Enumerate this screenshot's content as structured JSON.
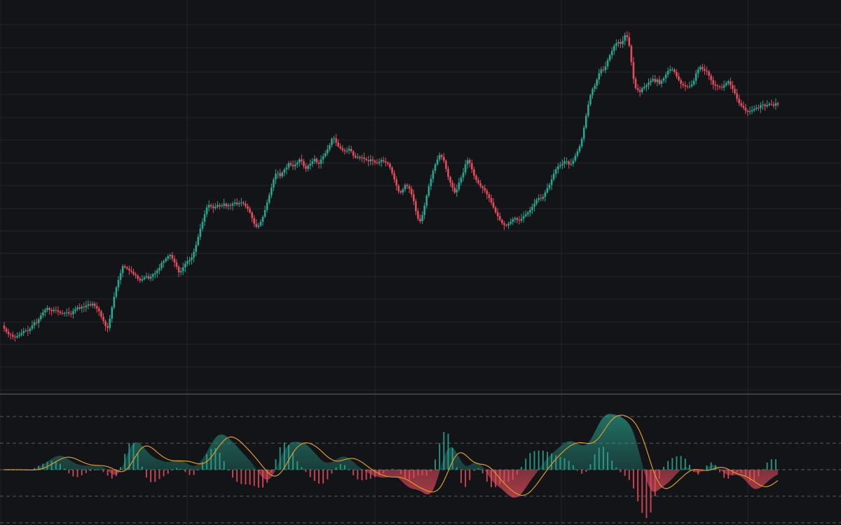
{
  "colors": {
    "background": "#131418",
    "grid": "#23252b",
    "pane_divider": "#3a3d45",
    "candle_up": "#2aa58f",
    "candle_down": "#e34c5c",
    "signal_line": "#e0992a",
    "level_line": "#6b6e76"
  },
  "chart_data": [
    {
      "type": "candlestick",
      "pane": "price",
      "grid": true,
      "x": [
        0,
        1,
        2,
        3,
        4,
        5,
        6,
        7,
        8,
        9,
        10,
        11,
        12,
        13,
        14,
        15,
        16,
        17,
        18,
        19,
        20,
        21,
        22,
        23,
        24,
        25,
        26,
        27,
        28,
        29,
        30,
        31,
        32,
        33,
        34,
        35,
        36,
        37,
        38,
        39,
        40,
        41,
        42,
        43,
        44,
        45,
        46,
        47,
        48,
        49,
        50,
        51,
        52,
        53,
        54,
        55,
        56,
        57,
        58,
        59,
        60,
        61,
        62,
        63,
        64,
        65,
        66,
        67,
        68,
        69,
        70,
        71,
        72,
        73,
        74,
        75,
        76,
        77,
        78,
        79,
        80,
        81,
        82,
        83,
        84,
        85,
        86,
        87,
        88,
        89,
        90,
        91,
        92,
        93,
        94,
        95,
        96,
        97,
        98,
        99,
        100,
        101,
        102,
        103,
        104,
        105,
        106,
        107,
        108,
        109,
        110,
        111,
        112,
        113,
        114,
        115,
        116,
        117,
        118,
        119,
        120,
        121,
        122,
        123,
        124,
        125,
        126,
        127,
        128,
        129,
        130,
        131,
        132,
        133,
        134,
        135,
        136,
        137,
        138,
        139,
        140,
        141,
        142,
        143,
        144,
        145,
        146,
        147,
        148,
        149,
        150,
        151,
        152,
        153,
        154,
        155,
        156,
        157,
        158,
        159,
        160,
        161,
        162,
        163,
        164,
        165,
        166,
        167,
        168,
        169,
        170,
        171,
        172,
        173,
        174,
        175,
        176,
        177,
        178,
        179,
        180,
        181,
        182,
        183,
        184,
        185,
        186,
        187,
        188,
        189,
        190,
        191,
        192,
        193,
        194,
        195,
        196,
        197,
        198,
        199,
        200,
        201,
        202,
        203,
        204,
        205,
        206,
        207,
        208,
        209,
        210,
        211,
        212,
        213,
        214,
        215,
        216,
        217,
        218,
        219,
        220,
        221,
        222,
        223,
        224,
        225,
        226,
        227,
        228,
        229,
        230,
        231,
        232,
        233,
        234,
        235,
        236,
        237,
        238,
        239,
        240,
        241,
        242,
        243,
        244,
        245,
        246,
        247,
        248,
        249,
        250,
        251,
        252,
        253,
        254,
        255,
        256,
        257,
        258,
        259,
        260,
        261,
        262,
        263,
        264,
        265,
        266,
        267,
        268,
        269,
        270,
        271,
        272,
        273,
        274,
        275,
        276,
        277,
        278,
        279,
        280,
        281,
        282,
        283,
        284,
        285,
        286,
        287,
        288,
        289,
        290,
        291,
        292,
        293,
        294,
        295,
        296,
        297,
        298,
        299,
        300,
        301,
        302,
        303,
        304,
        305,
        306,
        307,
        308,
        309,
        310,
        311,
        312,
        313,
        314,
        315,
        316,
        317,
        318,
        319,
        320,
        321,
        322,
        323,
        324,
        325,
        326,
        327,
        328,
        329,
        330,
        331,
        332,
        333,
        334,
        335,
        336,
        337,
        338,
        339,
        340,
        341,
        342,
        343,
        344,
        345,
        346,
        347,
        348,
        349,
        350,
        351,
        352,
        353,
        354,
        355,
        356,
        357,
        358,
        359
      ],
      "close": [
        9.6,
        9.1,
        8.7,
        8.6,
        8.3,
        8.2,
        8.4,
        8.6,
        8.9,
        9.2,
        9.3,
        9.2,
        9.6,
        10.1,
        10.6,
        10.5,
        11.1,
        11.7,
        12.2,
        12.6,
        12.9,
        12.6,
        12.4,
        12.6,
        12.5,
        12.3,
        12.1,
        12.0,
        12.1,
        12.2,
        12.0,
        11.9,
        12.4,
        12.7,
        13.0,
        12.8,
        13.1,
        13.0,
        13.3,
        13.5,
        13.3,
        13.6,
        13.2,
        12.8,
        12.4,
        11.5,
        10.8,
        10.0,
        9.7,
        11.2,
        13.0,
        14.7,
        16.2,
        17.4,
        18.5,
        19.6,
        19.4,
        19.2,
        18.9,
        18.7,
        18.3,
        18.1,
        17.6,
        17.3,
        17.5,
        17.8,
        18.0,
        17.6,
        17.9,
        18.3,
        18.5,
        18.9,
        19.3,
        20.1,
        20.4,
        20.8,
        21.2,
        21.4,
        20.8,
        20.2,
        19.5,
        18.6,
        18.8,
        19.4,
        20.0,
        20.4,
        20.6,
        21.0,
        21.9,
        23.0,
        24.3,
        25.6,
        26.7,
        27.9,
        29.0,
        29.4,
        29.2,
        28.9,
        29.1,
        29.4,
        29.2,
        29.3,
        29.6,
        29.2,
        29.4,
        29.3,
        29.6,
        29.8,
        29.5,
        29.7,
        29.8,
        29.6,
        29.2,
        28.8,
        28.2,
        27.3,
        26.4,
        25.9,
        26.1,
        26.7,
        27.5,
        28.6,
        29.8,
        31.0,
        32.2,
        33.5,
        34.4,
        34.5,
        34.0,
        34.6,
        35.1,
        35.4,
        36.1,
        35.8,
        35.6,
        35.9,
        36.2,
        36.7,
        36.4,
        35.6,
        35.2,
        35.7,
        36.0,
        36.4,
        36.8,
        36.2,
        36.0,
        36.7,
        37.2,
        37.7,
        38.3,
        39.0,
        40.0,
        40.1,
        39.4,
        38.8,
        38.5,
        38.2,
        38.0,
        38.1,
        38.4,
        38.0,
        37.3,
        37.0,
        37.1,
        36.9,
        37.0,
        36.8,
        36.6,
        36.4,
        36.7,
        36.5,
        36.2,
        36.1,
        36.3,
        36.6,
        36.4,
        36.2,
        36.0,
        35.4,
        34.5,
        33.5,
        32.5,
        31.6,
        31.4,
        31.9,
        32.6,
        32.4,
        32.0,
        31.1,
        30.0,
        28.4,
        27.2,
        26.8,
        27.8,
        29.3,
        30.9,
        32.4,
        33.6,
        34.9,
        35.9,
        36.7,
        37.4,
        37.1,
        36.5,
        35.2,
        33.9,
        33.0,
        32.2,
        31.4,
        31.9,
        33.0,
        33.8,
        34.6,
        35.9,
        36.6,
        36.1,
        35.1,
        34.1,
        33.4,
        32.9,
        32.4,
        32.1,
        31.7,
        31.1,
        30.5,
        29.8,
        29.0,
        28.2,
        27.6,
        27.0,
        26.5,
        26.2,
        26.1,
        26.4,
        26.7,
        27.1,
        27.3,
        27.0,
        26.9,
        27.2,
        27.6,
        27.9,
        28.2,
        28.6,
        29.1,
        29.6,
        30.2,
        30.5,
        30.4,
        30.7,
        31.4,
        32.1,
        32.6,
        33.5,
        34.4,
        35.1,
        35.6,
        35.8,
        36.0,
        36.4,
        36.4,
        35.9,
        36.0,
        36.5,
        37.3,
        38.0,
        38.8,
        40.0,
        41.8,
        43.7,
        45.5,
        47.0,
        48.0,
        48.5,
        49.5,
        50.5,
        51.1,
        51.0,
        51.6,
        52.6,
        53.4,
        54.1,
        54.9,
        55.3,
        55.5,
        55.2,
        55.7,
        56.6,
        56.3,
        54.9,
        52.3,
        49.6,
        48.1,
        47.8,
        47.5,
        48.1,
        48.3,
        48.6,
        49.0,
        49.3,
        49.6,
        49.1,
        49.5,
        48.8,
        49.3,
        49.7,
        50.3,
        50.9,
        51.1,
        51.1,
        50.7,
        50.0,
        49.4,
        48.8,
        48.6,
        48.4,
        48.3,
        48.4,
        48.7,
        49.3,
        50.5,
        51.1,
        51.5,
        51.2,
        50.9,
        50.8,
        50.1,
        49.4,
        48.7,
        48.5,
        48.4,
        48.3,
        48.2,
        48.6,
        48.9,
        49.2,
        48.6,
        48.0,
        47.3,
        46.4,
        45.7,
        45.3,
        45.0,
        44.5,
        44.3,
        44.4,
        44.6,
        44.8,
        45.0,
        44.9,
        45.4,
        45.5,
        45.2,
        45.4,
        45.6,
        45.5,
        45.3,
        45.7,
        45.5
      ],
      "open": [
        10.1,
        9.6,
        9.1,
        8.7,
        8.6,
        8.3,
        8.2,
        8.4,
        8.6,
        8.9,
        9.2,
        9.3,
        9.2,
        9.6,
        10.1,
        10.6,
        10.5,
        11.1,
        11.7,
        12.2,
        12.6,
        12.9,
        12.6,
        12.4,
        12.6,
        12.5,
        12.3,
        12.1,
        12.0,
        12.1,
        12.2,
        12.0,
        11.9,
        12.4,
        12.7,
        13.0,
        12.8,
        13.1,
        13.0,
        13.3,
        13.5,
        13.3,
        13.6,
        13.2,
        12.8,
        12.4,
        11.5,
        10.8,
        10.0,
        9.7,
        11.2,
        13.0,
        14.7,
        16.2,
        17.4,
        18.5,
        19.6,
        19.4,
        19.2,
        18.9,
        18.7,
        18.3,
        18.1,
        17.6,
        17.3,
        17.5,
        17.8,
        18.0,
        17.6,
        17.9,
        18.3,
        18.5,
        18.9,
        19.3,
        20.1,
        20.4,
        20.8,
        21.2,
        21.4,
        20.8,
        20.2,
        19.5,
        18.6,
        18.8,
        19.4,
        20.0,
        20.4,
        20.6,
        21.0,
        21.9,
        23.0,
        24.3,
        25.6,
        26.7,
        27.9,
        29.0,
        29.4,
        29.2,
        28.9,
        29.1,
        29.4,
        29.2,
        29.3,
        29.6,
        29.2,
        29.4,
        29.3,
        29.6,
        29.8,
        29.5,
        29.7,
        29.8,
        29.6,
        29.2,
        28.8,
        28.2,
        27.3,
        26.4,
        25.9,
        26.1,
        26.7,
        27.5,
        28.6,
        29.8,
        31.0,
        32.2,
        33.5,
        34.4,
        34.5,
        34.0,
        34.6,
        35.1,
        35.4,
        36.1,
        35.8,
        35.6,
        35.9,
        36.2,
        36.7,
        36.4,
        35.6,
        35.2,
        35.7,
        36.0,
        36.4,
        36.8,
        36.2,
        36.0,
        36.7,
        37.2,
        37.7,
        38.3,
        39.0,
        40.0,
        40.1,
        39.4,
        38.8,
        38.5,
        38.2,
        38.0,
        38.1,
        38.4,
        38.0,
        37.3,
        37.0,
        37.1,
        36.9,
        37.0,
        36.8,
        36.6,
        36.4,
        36.7,
        36.5,
        36.2,
        36.1,
        36.3,
        36.6,
        36.4,
        36.2,
        36.0,
        35.4,
        34.5,
        33.5,
        32.5,
        31.6,
        31.4,
        31.9,
        32.6,
        32.4,
        32.0,
        31.1,
        30.0,
        28.4,
        27.2,
        26.8,
        27.8,
        29.3,
        30.9,
        32.4,
        33.6,
        34.9,
        35.9,
        36.7,
        37.4,
        37.1,
        36.5,
        35.2,
        33.9,
        33.0,
        32.2,
        31.4,
        31.9,
        33.0,
        33.8,
        34.6,
        35.9,
        36.6,
        36.1,
        35.1,
        34.1,
        33.4,
        32.9,
        32.4,
        32.1,
        31.7,
        31.1,
        30.5,
        29.8,
        29.0,
        28.2,
        27.6,
        27.0,
        26.5,
        26.2,
        26.1,
        26.4,
        26.7,
        27.1,
        27.3,
        27.0,
        26.9,
        27.2,
        27.6,
        27.9,
        28.2,
        28.6,
        29.1,
        29.6,
        30.2,
        30.5,
        30.4,
        30.7,
        31.4,
        32.1,
        32.6,
        33.5,
        34.4,
        35.1,
        35.6,
        35.8,
        36.0,
        36.4,
        36.4,
        35.9,
        36.0,
        36.5,
        37.3,
        38.0,
        38.8,
        40.0,
        41.8,
        43.7,
        45.5,
        47.0,
        48.0,
        48.5,
        49.5,
        50.5,
        51.1,
        51.0,
        51.6,
        52.6,
        53.4,
        54.1,
        54.9,
        55.3,
        55.5,
        55.2,
        55.7,
        56.6,
        56.3,
        54.9,
        52.3,
        49.6,
        48.1,
        47.8,
        47.5,
        48.1,
        48.3,
        48.6,
        49.0,
        49.3,
        49.6,
        49.1,
        49.5,
        48.8,
        49.3,
        49.7,
        50.3,
        50.9,
        51.1,
        51.1,
        50.7,
        50.0,
        49.4,
        48.8,
        48.6,
        48.4,
        48.3,
        48.4,
        48.7,
        49.3,
        50.5,
        51.1,
        51.5,
        51.2,
        50.9,
        50.8,
        50.1,
        49.4,
        48.7,
        48.5,
        48.4,
        48.3,
        48.2,
        48.6,
        48.9,
        49.2,
        48.6,
        48.0,
        47.3,
        46.4,
        45.7,
        45.3,
        45.0,
        44.5,
        44.3,
        44.4,
        44.6,
        44.8,
        45.0,
        44.9,
        45.4,
        45.5,
        45.2,
        45.4,
        45.6,
        45.5,
        45.3,
        45.7
      ],
      "ylim": [
        0,
        60
      ]
    },
    {
      "type": "oscillator",
      "pane": "indicator",
      "components": [
        "histogram",
        "area",
        "signal_line"
      ],
      "levels": [
        1.0,
        0.5,
        0.0,
        -0.5,
        -1.0
      ],
      "ylim": [
        -1.2,
        1.2
      ]
    }
  ]
}
